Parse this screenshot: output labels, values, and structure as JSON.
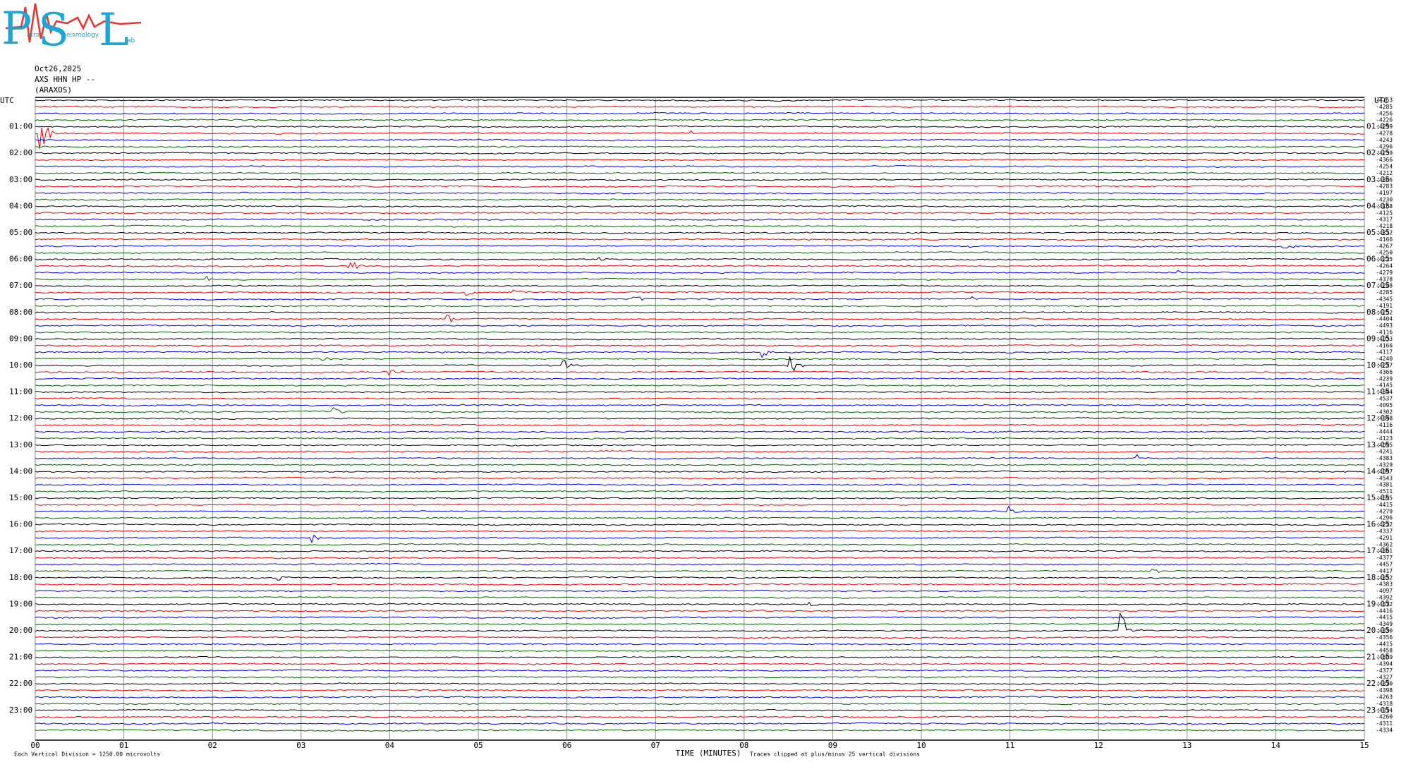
{
  "header": {
    "logo": {
      "letters": [
        "P",
        "S",
        "L"
      ],
      "words": [
        "atras",
        "eismology",
        "ab"
      ]
    },
    "date": "Oct26,2025",
    "station": "AXS HHN HP --",
    "site": "(ARAXOS)"
  },
  "utc": "UTC",
  "left_labels": [
    "01:00",
    "02:00",
    "03:00",
    "04:00",
    "05:00",
    "06:00",
    "07:00",
    "08:00",
    "09:00",
    "10:00",
    "11:00",
    "12:00",
    "13:00",
    "14:00",
    "15:00",
    "16:00",
    "17:00",
    "18:00",
    "19:00",
    "20:00",
    "21:00",
    "22:00",
    "23:00"
  ],
  "right_labels": [
    "01:15",
    "02:15",
    "03:15",
    "04:15",
    "05:15",
    "06:15",
    "07:15",
    "08:15",
    "09:15",
    "10:15",
    "11:15",
    "12:15",
    "13:15",
    "14:15",
    "15:15",
    "16:15",
    "17:15",
    "18:15",
    "19:15",
    "20:15",
    "21:15",
    "22:15",
    "23:15"
  ],
  "trace_offsets": [
    -4263,
    -4285,
    -4256,
    -4226,
    -4299,
    -4278,
    -4243,
    -4296,
    -4239,
    -4366,
    -4254,
    -4212,
    -4306,
    -4283,
    -4197,
    -4230,
    -4168,
    -4125,
    -4317,
    -4218,
    -4312,
    -4166,
    -4267,
    -4250,
    -4225,
    -4264,
    -4279,
    -4378,
    -4248,
    -4285,
    -4345,
    -4191,
    -4252,
    -4404,
    -4493,
    -4116,
    -4033,
    -4166,
    -4117,
    -4240,
    -4227,
    -4366,
    -4239,
    -4145,
    -4344,
    -4537,
    -4095,
    -4302,
    -4348,
    -4116,
    -4444,
    -4123,
    -4095,
    -4241,
    -4383,
    -4329,
    -4097,
    -4543,
    -4381,
    -4511,
    -4695,
    -4415,
    -4279,
    -4296,
    -4222,
    -4337,
    -4291,
    -4362,
    -4361,
    -4377,
    -4457,
    -4417,
    -4352,
    -4383,
    -4097,
    -4392,
    -4372,
    -4416,
    -4415,
    -4349,
    -4330,
    -4356,
    -4415,
    -4458,
    -4309,
    -4394,
    -4377,
    -4327,
    -4370,
    -4398,
    -4263,
    -4318,
    -4314,
    -4260,
    -4311,
    -4334
  ],
  "x_ticks": [
    "00",
    "01",
    "02",
    "03",
    "04",
    "05",
    "06",
    "07",
    "08",
    "09",
    "10",
    "11",
    "12",
    "13",
    "14",
    "15"
  ],
  "footer": {
    "scale_note": "Each Vertical Division = 1250.00 microvolts",
    "axis_title": "TIME (MINUTES)",
    "clip_note": "Traces clipped at plus/minus 25 vertical divisions"
  }
}
